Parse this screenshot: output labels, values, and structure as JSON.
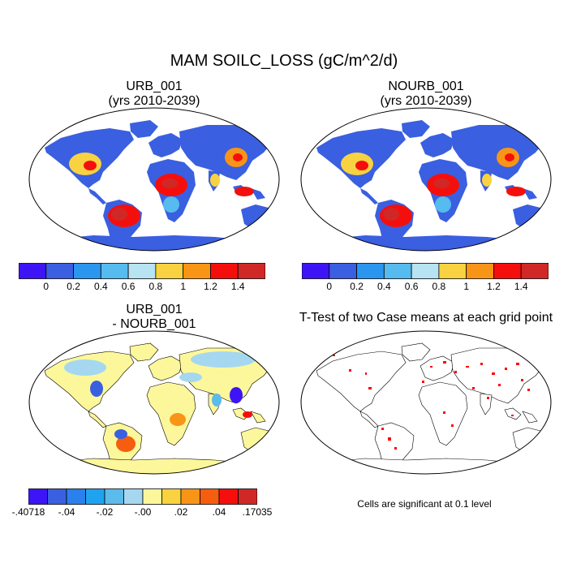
{
  "figure": {
    "title": "MAM SOILC_LOSS (gC/m^2/d)"
  },
  "panels": [
    {
      "id": "urb",
      "title_line1": "URB_001",
      "title_line2": "(yrs 2010-2039)"
    },
    {
      "id": "nourb",
      "title_line1": "NOURB_001",
      "title_line2": "(yrs 2010-2039)"
    },
    {
      "id": "diff",
      "title_line1": "URB_001",
      "title_line2": "- NOURB_001"
    },
    {
      "id": "ttest",
      "title_line1": "T-Test of two Case means at each grid point",
      "title_line2": ""
    }
  ],
  "colorbar_abs": {
    "colors": [
      "#3d14f5",
      "#3a5fe0",
      "#2a96ee",
      "#56bbee",
      "#b7e3f2",
      "#f8d240",
      "#f99516",
      "#f50f0c",
      "#d02826"
    ],
    "labels": [
      "0",
      "0.2",
      "0.4",
      "0.6",
      "0.8",
      "1",
      "1.2",
      "1.4"
    ]
  },
  "colorbar_diff": {
    "colors": [
      "#3d14f5",
      "#3a5fe0",
      "#2a80ec",
      "#1fa3f0",
      "#5bbbea",
      "#a5d8f0",
      "#fdf79b",
      "#f8d240",
      "#f99516",
      "#f55e0f",
      "#f50f0c",
      "#d02826"
    ],
    "labels": [
      ".40718",
      "-.04",
      "-.02",
      "-.00",
      ".02",
      ".04",
      ".17035"
    ],
    "label_prefix_first": "-",
    "label_positions": [
      0,
      2,
      4,
      6,
      8,
      10,
      12
    ]
  },
  "significance_note": "Cells are significant at 0.1 level",
  "map_colors": {
    "ocean": "#ffffff",
    "land_low": "#3a5fe0",
    "antarctica_abs": "#3a5fe0",
    "antarctica_diff": "#fdf79b",
    "sig_dots": "#ff0000"
  }
}
